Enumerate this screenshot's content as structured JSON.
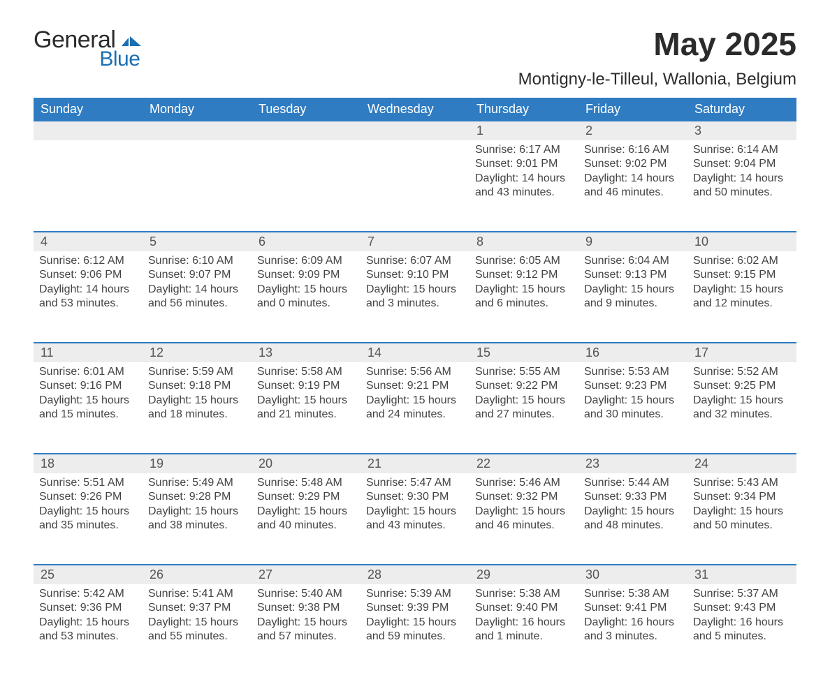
{
  "brand": {
    "name_a": "General",
    "name_b": "Blue"
  },
  "title": {
    "month": "May 2025",
    "location": "Montigny-le-Tilleul, Wallonia, Belgium"
  },
  "colors": {
    "header_blue": "#2f7cc2",
    "rule_blue": "#2f7cc2",
    "daynum_bg": "#ededed",
    "text": "#333333",
    "muted": "#444444",
    "page_bg": "#ffffff",
    "logo_blue": "#1a6fb3"
  },
  "weekdays": [
    "Sunday",
    "Monday",
    "Tuesday",
    "Wednesday",
    "Thursday",
    "Friday",
    "Saturday"
  ],
  "weeks": [
    [
      null,
      null,
      null,
      null,
      {
        "n": "1",
        "sunrise": "6:17 AM",
        "sunset": "9:01 PM",
        "daylight": "14 hours and 43 minutes."
      },
      {
        "n": "2",
        "sunrise": "6:16 AM",
        "sunset": "9:02 PM",
        "daylight": "14 hours and 46 minutes."
      },
      {
        "n": "3",
        "sunrise": "6:14 AM",
        "sunset": "9:04 PM",
        "daylight": "14 hours and 50 minutes."
      }
    ],
    [
      {
        "n": "4",
        "sunrise": "6:12 AM",
        "sunset": "9:06 PM",
        "daylight": "14 hours and 53 minutes."
      },
      {
        "n": "5",
        "sunrise": "6:10 AM",
        "sunset": "9:07 PM",
        "daylight": "14 hours and 56 minutes."
      },
      {
        "n": "6",
        "sunrise": "6:09 AM",
        "sunset": "9:09 PM",
        "daylight": "15 hours and 0 minutes."
      },
      {
        "n": "7",
        "sunrise": "6:07 AM",
        "sunset": "9:10 PM",
        "daylight": "15 hours and 3 minutes."
      },
      {
        "n": "8",
        "sunrise": "6:05 AM",
        "sunset": "9:12 PM",
        "daylight": "15 hours and 6 minutes."
      },
      {
        "n": "9",
        "sunrise": "6:04 AM",
        "sunset": "9:13 PM",
        "daylight": "15 hours and 9 minutes."
      },
      {
        "n": "10",
        "sunrise": "6:02 AM",
        "sunset": "9:15 PM",
        "daylight": "15 hours and 12 minutes."
      }
    ],
    [
      {
        "n": "11",
        "sunrise": "6:01 AM",
        "sunset": "9:16 PM",
        "daylight": "15 hours and 15 minutes."
      },
      {
        "n": "12",
        "sunrise": "5:59 AM",
        "sunset": "9:18 PM",
        "daylight": "15 hours and 18 minutes."
      },
      {
        "n": "13",
        "sunrise": "5:58 AM",
        "sunset": "9:19 PM",
        "daylight": "15 hours and 21 minutes."
      },
      {
        "n": "14",
        "sunrise": "5:56 AM",
        "sunset": "9:21 PM",
        "daylight": "15 hours and 24 minutes."
      },
      {
        "n": "15",
        "sunrise": "5:55 AM",
        "sunset": "9:22 PM",
        "daylight": "15 hours and 27 minutes."
      },
      {
        "n": "16",
        "sunrise": "5:53 AM",
        "sunset": "9:23 PM",
        "daylight": "15 hours and 30 minutes."
      },
      {
        "n": "17",
        "sunrise": "5:52 AM",
        "sunset": "9:25 PM",
        "daylight": "15 hours and 32 minutes."
      }
    ],
    [
      {
        "n": "18",
        "sunrise": "5:51 AM",
        "sunset": "9:26 PM",
        "daylight": "15 hours and 35 minutes."
      },
      {
        "n": "19",
        "sunrise": "5:49 AM",
        "sunset": "9:28 PM",
        "daylight": "15 hours and 38 minutes."
      },
      {
        "n": "20",
        "sunrise": "5:48 AM",
        "sunset": "9:29 PM",
        "daylight": "15 hours and 40 minutes."
      },
      {
        "n": "21",
        "sunrise": "5:47 AM",
        "sunset": "9:30 PM",
        "daylight": "15 hours and 43 minutes."
      },
      {
        "n": "22",
        "sunrise": "5:46 AM",
        "sunset": "9:32 PM",
        "daylight": "15 hours and 46 minutes."
      },
      {
        "n": "23",
        "sunrise": "5:44 AM",
        "sunset": "9:33 PM",
        "daylight": "15 hours and 48 minutes."
      },
      {
        "n": "24",
        "sunrise": "5:43 AM",
        "sunset": "9:34 PM",
        "daylight": "15 hours and 50 minutes."
      }
    ],
    [
      {
        "n": "25",
        "sunrise": "5:42 AM",
        "sunset": "9:36 PM",
        "daylight": "15 hours and 53 minutes."
      },
      {
        "n": "26",
        "sunrise": "5:41 AM",
        "sunset": "9:37 PM",
        "daylight": "15 hours and 55 minutes."
      },
      {
        "n": "27",
        "sunrise": "5:40 AM",
        "sunset": "9:38 PM",
        "daylight": "15 hours and 57 minutes."
      },
      {
        "n": "28",
        "sunrise": "5:39 AM",
        "sunset": "9:39 PM",
        "daylight": "15 hours and 59 minutes."
      },
      {
        "n": "29",
        "sunrise": "5:38 AM",
        "sunset": "9:40 PM",
        "daylight": "16 hours and 1 minute."
      },
      {
        "n": "30",
        "sunrise": "5:38 AM",
        "sunset": "9:41 PM",
        "daylight": "16 hours and 3 minutes."
      },
      {
        "n": "31",
        "sunrise": "5:37 AM",
        "sunset": "9:43 PM",
        "daylight": "16 hours and 5 minutes."
      }
    ]
  ],
  "labels": {
    "sunrise": "Sunrise: ",
    "sunset": "Sunset: ",
    "daylight": "Daylight: "
  }
}
